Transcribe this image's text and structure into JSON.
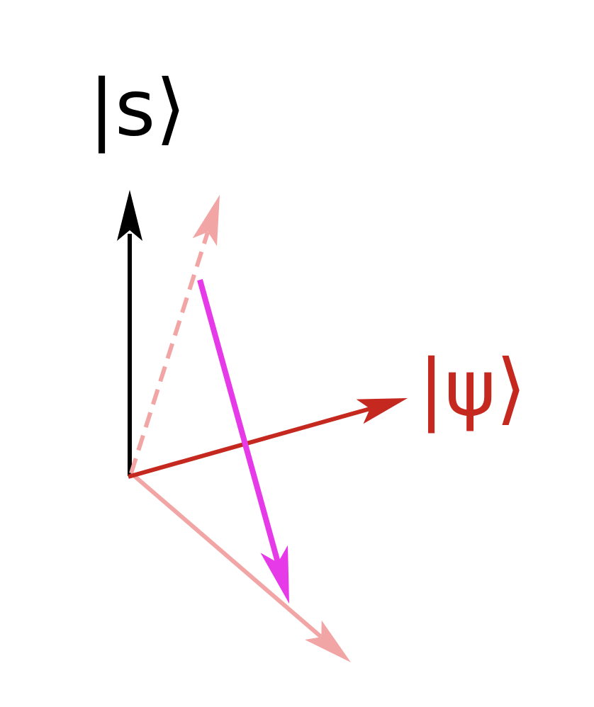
{
  "labels": {
    "s": "|s⟩",
    "psi": "|ψ⟩"
  }
}
